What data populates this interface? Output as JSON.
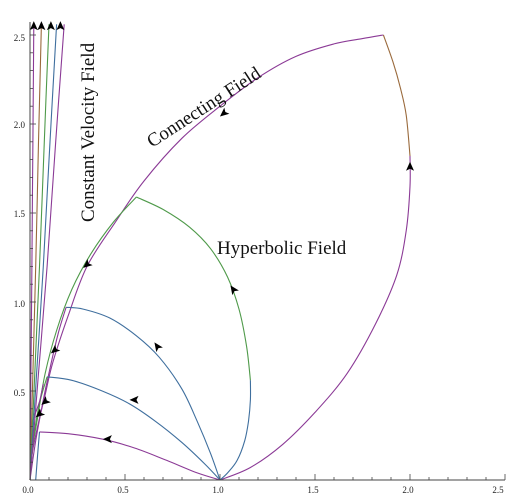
{
  "chart_data": {
    "type": "line",
    "title": "",
    "xlabel": "",
    "ylabel": "",
    "xlim": [
      0,
      2.5
    ],
    "ylim": [
      0,
      2.5
    ],
    "x_ticks": [
      "0.0",
      "0.5",
      "1.0",
      "1.5",
      "2.0",
      "2.5"
    ],
    "y_ticks": [
      "0.5",
      "1.0",
      "1.5",
      "2.0",
      "2.5"
    ],
    "annotations": [
      {
        "id": "constant",
        "text": "Constant Velocity Field"
      },
      {
        "id": "connecting",
        "text": "Connecting Field"
      },
      {
        "id": "hyperbolic",
        "text": "Hyperbolic Field"
      }
    ],
    "colors": {
      "purple": "#8b3a96",
      "blue": "#3f6f9e",
      "green": "#4f9a4a",
      "brown": "#9a6a3c",
      "axis": "#444444"
    },
    "series": [
      {
        "color": "#8b3a96",
        "x": [
          0.0,
          0.01,
          0.04,
          0.08,
          0.12,
          0.2,
          0.3,
          0.45,
          0.6,
          0.8,
          1.0,
          1.2,
          1.4,
          1.6,
          1.75,
          1.86
        ],
        "y": [
          0.0,
          0.14,
          0.3,
          0.48,
          0.66,
          0.92,
          1.2,
          1.45,
          1.68,
          1.92,
          2.1,
          2.26,
          2.38,
          2.45,
          2.48,
          2.5
        ]
      },
      {
        "color": "#9a6a3c",
        "x": [
          1.86,
          1.91,
          1.95,
          1.98,
          2.0
        ],
        "y": [
          2.5,
          2.35,
          2.2,
          2.05,
          1.82
        ]
      },
      {
        "color": "#8b3a96",
        "x": [
          2.0,
          2.0,
          1.98,
          1.93,
          1.82,
          1.67,
          1.5,
          1.33,
          1.16,
          1.0
        ],
        "y": [
          1.82,
          1.65,
          1.4,
          1.15,
          0.88,
          0.6,
          0.38,
          0.2,
          0.07,
          0.0
        ]
      },
      {
        "color": "#4f9a4a",
        "x": [
          0.0,
          0.01,
          0.04,
          0.08,
          0.14,
          0.22,
          0.32,
          0.44,
          0.56
        ],
        "y": [
          0.0,
          0.16,
          0.35,
          0.6,
          0.84,
          1.07,
          1.27,
          1.45,
          1.59
        ]
      },
      {
        "color": "#4f9a4a",
        "x": [
          0.56,
          0.7,
          0.84,
          0.95,
          1.04,
          1.1,
          1.14,
          1.16
        ],
        "y": [
          1.59,
          1.52,
          1.42,
          1.3,
          1.14,
          0.96,
          0.75,
          0.56
        ]
      },
      {
        "color": "#3f6f9e",
        "x": [
          1.16,
          1.16,
          1.15,
          1.13,
          1.09,
          1.04,
          1.0
        ],
        "y": [
          0.56,
          0.45,
          0.33,
          0.22,
          0.11,
          0.04,
          0.0
        ]
      },
      {
        "color": "#3f6f9e",
        "x": [
          0.19,
          0.28,
          0.42,
          0.56,
          0.68,
          0.8,
          0.88,
          0.95,
          1.0
        ],
        "y": [
          0.97,
          0.96,
          0.91,
          0.81,
          0.69,
          0.51,
          0.33,
          0.15,
          0.0
        ]
      },
      {
        "color": "#8b3a96",
        "x": [
          0.0,
          0.03,
          0.07,
          0.11,
          0.15,
          0.19
        ],
        "y": [
          0.0,
          0.22,
          0.45,
          0.65,
          0.83,
          0.97
        ]
      },
      {
        "color": "#3f6f9e",
        "x": [
          0.09,
          0.22,
          0.38,
          0.52,
          0.66,
          0.8,
          0.92,
          1.0
        ],
        "y": [
          0.58,
          0.56,
          0.5,
          0.43,
          0.33,
          0.21,
          0.09,
          0.0
        ]
      },
      {
        "color": "#4f9a4a",
        "x": [
          0.0,
          0.02,
          0.05,
          0.09
        ],
        "y": [
          0.0,
          0.24,
          0.43,
          0.58
        ]
      },
      {
        "color": "#8b3a96",
        "x": [
          0.05,
          0.2,
          0.38,
          0.55,
          0.72,
          0.88,
          1.0
        ],
        "y": [
          0.27,
          0.26,
          0.23,
          0.18,
          0.11,
          0.04,
          0.0
        ]
      },
      {
        "color": "#3f6f9e",
        "x": [
          0.03,
          0.04,
          0.05
        ],
        "y": [
          0.0,
          0.14,
          0.27
        ]
      },
      {
        "color": "#8b3a96",
        "x": [
          0.0,
          0.015,
          0.03,
          0.05,
          0.07
        ],
        "y": [
          0.3,
          0.34,
          0.38,
          0.44,
          0.54
        ]
      },
      {
        "color": "#8b3a96",
        "x": [
          0.0,
          0.005,
          0.01,
          0.015,
          0.02
        ],
        "y": [
          0.0,
          0.6,
          1.2,
          1.9,
          2.56
        ]
      },
      {
        "color": "#9a6a3c",
        "x": [
          0.0,
          0.015,
          0.03,
          0.045,
          0.06
        ],
        "y": [
          0.0,
          0.6,
          1.2,
          1.9,
          2.56
        ]
      },
      {
        "color": "#4f9a4a",
        "x": [
          0.0,
          0.025,
          0.05,
          0.075,
          0.1
        ],
        "y": [
          0.0,
          0.6,
          1.2,
          1.9,
          2.56
        ]
      },
      {
        "color": "#3f6f9e",
        "x": [
          0.0,
          0.035,
          0.07,
          0.105,
          0.14
        ],
        "y": [
          0.0,
          0.6,
          1.2,
          1.9,
          2.56
        ]
      },
      {
        "color": "#8b3a96",
        "x": [
          0.0,
          0.045,
          0.09,
          0.135,
          0.18
        ],
        "y": [
          0.0,
          0.6,
          1.2,
          1.9,
          2.56
        ]
      }
    ],
    "arrows": [
      {
        "x": 1.02,
        "y": 2.06,
        "dir": "down-left"
      },
      {
        "x": 0.3,
        "y": 1.21,
        "dir": "down-left"
      },
      {
        "x": 2.0,
        "y": 1.76,
        "dir": "up"
      },
      {
        "x": 1.07,
        "y": 1.07,
        "dir": "up-left"
      },
      {
        "x": 0.67,
        "y": 0.75,
        "dir": "up-left"
      },
      {
        "x": 0.55,
        "y": 0.45,
        "dir": "left"
      },
      {
        "x": 0.41,
        "y": 0.23,
        "dir": "left"
      },
      {
        "x": 0.13,
        "y": 0.73,
        "dir": "down-left"
      },
      {
        "x": 0.08,
        "y": 0.44,
        "dir": "down-left"
      },
      {
        "x": 0.05,
        "y": 0.37,
        "dir": "down-left"
      },
      {
        "x": 0.02,
        "y": 2.55,
        "dir": "up"
      },
      {
        "x": 0.06,
        "y": 2.55,
        "dir": "up"
      },
      {
        "x": 0.11,
        "y": 2.55,
        "dir": "up"
      },
      {
        "x": 0.16,
        "y": 2.55,
        "dir": "up"
      }
    ]
  }
}
